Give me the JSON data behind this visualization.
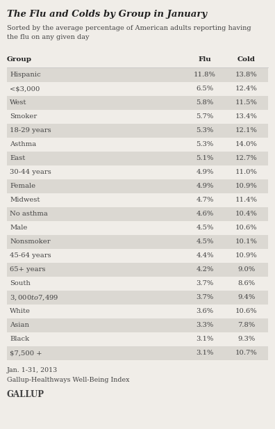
{
  "title": "The Flu and Colds by Group in January",
  "subtitle": "Sorted by the average percentage of American adults reporting having\nthe flu on any given day",
  "col_header_group": "Group",
  "col_header_flu": "Flu",
  "col_header_cold": "Cold",
  "rows": [
    {
      "group": "Hispanic",
      "flu": "11.8%",
      "cold": "13.8%"
    },
    {
      "group": "<$3,000",
      "flu": "6.5%",
      "cold": "12.4%"
    },
    {
      "group": "West",
      "flu": "5.8%",
      "cold": "11.5%"
    },
    {
      "group": "Smoker",
      "flu": "5.7%",
      "cold": "13.4%"
    },
    {
      "group": "18-29 years",
      "flu": "5.3%",
      "cold": "12.1%"
    },
    {
      "group": "Asthma",
      "flu": "5.3%",
      "cold": "14.0%"
    },
    {
      "group": "East",
      "flu": "5.1%",
      "cold": "12.7%"
    },
    {
      "group": "30-44 years",
      "flu": "4.9%",
      "cold": "11.0%"
    },
    {
      "group": "Female",
      "flu": "4.9%",
      "cold": "10.9%"
    },
    {
      "group": "Midwest",
      "flu": "4.7%",
      "cold": "11.4%"
    },
    {
      "group": "No asthma",
      "flu": "4.6%",
      "cold": "10.4%"
    },
    {
      "group": "Male",
      "flu": "4.5%",
      "cold": "10.6%"
    },
    {
      "group": "Nonsmoker",
      "flu": "4.5%",
      "cold": "10.1%"
    },
    {
      "group": "45-64 years",
      "flu": "4.4%",
      "cold": "10.9%"
    },
    {
      "group": "65+ years",
      "flu": "4.2%",
      "cold": "9.0%"
    },
    {
      "group": "South",
      "flu": "3.7%",
      "cold": "8.6%"
    },
    {
      "group": "$3,000 to $7,499",
      "flu": "3.7%",
      "cold": "9.4%"
    },
    {
      "group": "White",
      "flu": "3.6%",
      "cold": "10.6%"
    },
    {
      "group": "Asian",
      "flu": "3.3%",
      "cold": "7.8%"
    },
    {
      "group": "Black",
      "flu": "3.1%",
      "cold": "9.3%"
    },
    {
      "group": "$7,500 +",
      "flu": "3.1%",
      "cold": "10.7%"
    }
  ],
  "footer_line1": "Jan. 1-31, 2013",
  "footer_line2": "Gallup-Healthways Well-Being Index",
  "footer_line3": "GALLUP",
  "bg_color": "#f0ede8",
  "row_even_color": "#dbd8d2",
  "row_odd_color": "#f0ede8",
  "figure_bg": "#f0ede8",
  "title_color": "#222222",
  "text_color": "#444444",
  "header_text_color": "#222222"
}
